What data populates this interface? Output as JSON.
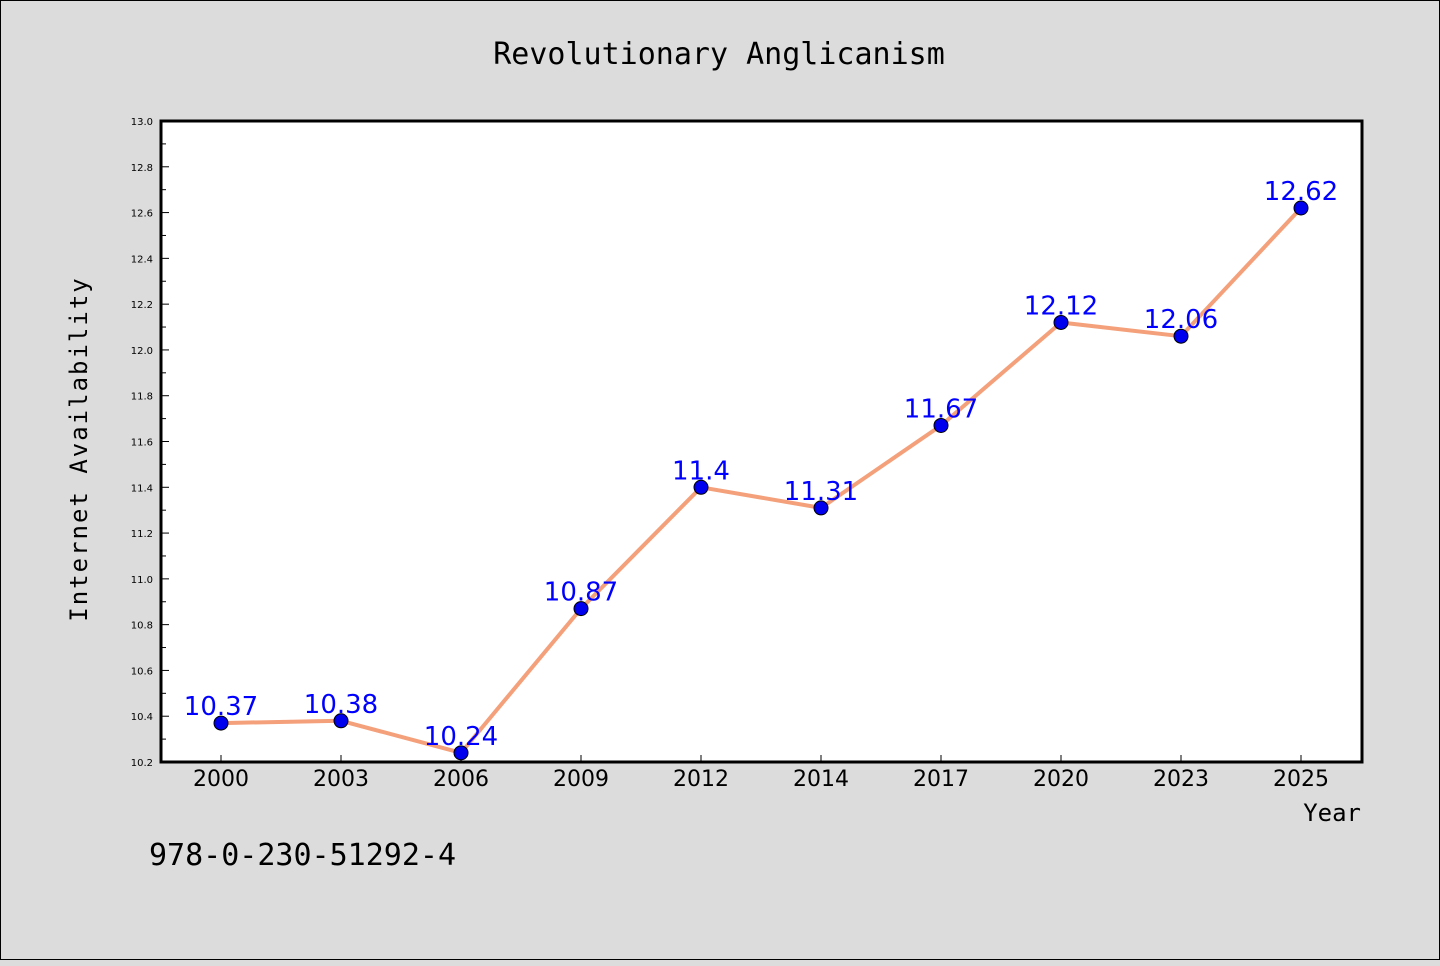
{
  "chart_data": {
    "type": "line",
    "title": "Revolutionary Anglicanism",
    "xlabel": "Year",
    "ylabel": "Internet Availability",
    "categories": [
      "2000",
      "2003",
      "2006",
      "2009",
      "2012",
      "2014",
      "2017",
      "2020",
      "2023",
      "2025"
    ],
    "series": [
      {
        "values": [
          10.37,
          10.38,
          10.24,
          10.87,
          11.4,
          11.31,
          11.67,
          12.12,
          12.06,
          12.62
        ],
        "labels": [
          "10.37",
          "10.38",
          "10.24",
          "10.87",
          "11.4",
          "11.31",
          "11.67",
          "12.12",
          "12.06",
          "12.62"
        ],
        "line_color": "#f4a07a",
        "marker_color": "#0000ee"
      }
    ],
    "ylim": [
      10.2,
      13.0
    ],
    "yticks": [
      "10.2",
      "10.4",
      "10.6",
      "10.8",
      "11.0",
      "11.2",
      "11.4",
      "11.6",
      "11.8",
      "12.0",
      "12.2",
      "12.4",
      "12.6",
      "12.8",
      "13.0"
    ],
    "grid": false,
    "label_color": "#0000ff"
  },
  "footer": {
    "isbn": "978-0-230-51292-4"
  }
}
